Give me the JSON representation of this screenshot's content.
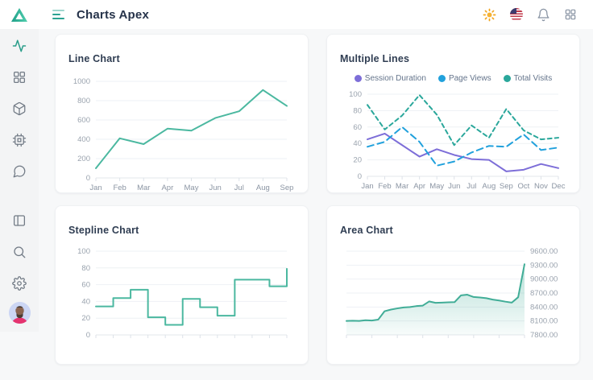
{
  "header": {
    "title": "Charts Apex",
    "logo_icon": "triangle-logo",
    "menu_icon": "hamburger-icon",
    "action_icons": [
      "sun-icon",
      "us-flag-icon",
      "bell-icon",
      "apps-grid-icon"
    ]
  },
  "sidebar": {
    "nav_icons_top": [
      "activity-icon",
      "dashboard-grid-icon",
      "box-icon",
      "cpu-icon",
      "chat-bubble-icon"
    ],
    "active_item": "activity-icon",
    "nav_icons_bottom": [
      "panel-icon",
      "search-icon",
      "gear-icon"
    ],
    "avatar": "user-avatar"
  },
  "colors": {
    "accent_teal": "#2a9d8a",
    "chart_teal": "#4bb8a0",
    "series_purple": "#7d6ed8",
    "series_blue": "#21a1dc",
    "series_green": "#2aa79b",
    "area_teal": "#41ad97"
  },
  "chart_data": [
    {
      "id": "line",
      "type": "line",
      "title": "Line Chart",
      "categories": [
        "Jan",
        "Feb",
        "Mar",
        "Apr",
        "May",
        "Jun",
        "Jul",
        "Aug",
        "Sep"
      ],
      "values": [
        100,
        410,
        350,
        510,
        490,
        620,
        690,
        910,
        745
      ],
      "ylim": [
        0,
        1000
      ],
      "ytick_labels": [
        "0",
        "200",
        "400",
        "600",
        "800",
        "1000"
      ],
      "color": "#4bb8a0",
      "x_labels_visible": true,
      "y_axis": "left",
      "grid": "horizontal"
    },
    {
      "id": "multi",
      "type": "line",
      "title": "Multiple Lines",
      "categories": [
        "Jan",
        "Feb",
        "Mar",
        "Apr",
        "May",
        "Jun",
        "Jul",
        "Aug",
        "Sep",
        "Oct",
        "Nov",
        "Dec"
      ],
      "series": [
        {
          "name": "Session Duration",
          "color": "#7d6ed8",
          "dash": "none",
          "values": [
            45,
            52,
            38,
            24,
            33,
            26,
            21,
            20,
            6,
            8,
            15,
            10
          ]
        },
        {
          "name": "Page Views",
          "color": "#21a1dc",
          "dash": "8 5",
          "values": [
            36,
            42,
            60,
            42,
            13,
            18,
            29,
            37,
            36,
            51,
            32,
            35
          ]
        },
        {
          "name": "Total Visits",
          "color": "#2aa79b",
          "dash": "5 4",
          "values": [
            87,
            57,
            74,
            99,
            75,
            38,
            62,
            47,
            82,
            56,
            45,
            47
          ]
        }
      ],
      "ylim": [
        0,
        100
      ],
      "ytick_labels": [
        "0",
        "20",
        "40",
        "60",
        "80",
        "100"
      ],
      "legend_position": "top",
      "x_labels_visible": true,
      "y_axis": "left",
      "grid": "horizontal"
    },
    {
      "id": "stepline",
      "type": "step",
      "title": "Stepline Chart",
      "values": [
        34,
        44,
        54,
        21,
        12,
        43,
        33,
        23,
        66,
        66,
        58,
        79
      ],
      "ylim": [
        0,
        100
      ],
      "ytick_labels": [
        "0",
        "20",
        "40",
        "60",
        "80",
        "100"
      ],
      "color": "#4bb8a0",
      "x_labels_visible": false,
      "x_tick_count": 12,
      "y_axis": "left",
      "grid": "horizontal"
    },
    {
      "id": "area",
      "type": "area",
      "title": "Area Chart",
      "values": [
        8100,
        8105,
        8100,
        8115,
        8110,
        8130,
        8310,
        8345,
        8370,
        8390,
        8400,
        8420,
        8430,
        8520,
        8490,
        8495,
        8500,
        8505,
        8650,
        8665,
        8615,
        8605,
        8590,
        8560,
        8540,
        8515,
        8495,
        8610,
        9320
      ],
      "ylim": [
        7800,
        9600
      ],
      "ytick_labels": [
        "7800.00",
        "8100.00",
        "8400.00",
        "8700.00",
        "9000.00",
        "9300.00",
        "9600.00"
      ],
      "color": "#41ad97",
      "x_labels_visible": false,
      "x_tick_count": 8,
      "y_axis": "right",
      "grid": "horizontal"
    }
  ]
}
